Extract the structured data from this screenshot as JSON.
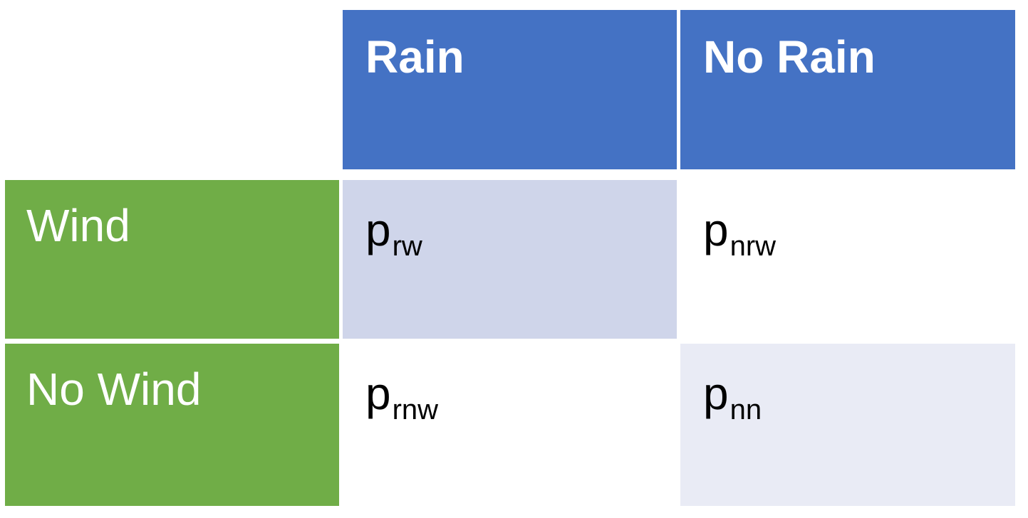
{
  "table": {
    "columns": [
      {
        "label": "Rain"
      },
      {
        "label": "No Rain"
      }
    ],
    "rows": [
      {
        "label": "Wind",
        "cells": [
          {
            "base": "p",
            "sub": "rw"
          },
          {
            "base": "p",
            "sub": "nrw"
          }
        ]
      },
      {
        "label": "No Wind",
        "cells": [
          {
            "base": "p",
            "sub": "rnw"
          },
          {
            "base": "p",
            "sub": "nn"
          }
        ]
      }
    ]
  },
  "colors": {
    "header": "#4472c4",
    "row_label": "#70ad47",
    "cell_shaded_dark": "#cfd5ea",
    "cell_shaded_light": "#e9ebf5",
    "cell_plain": "#ffffff"
  }
}
